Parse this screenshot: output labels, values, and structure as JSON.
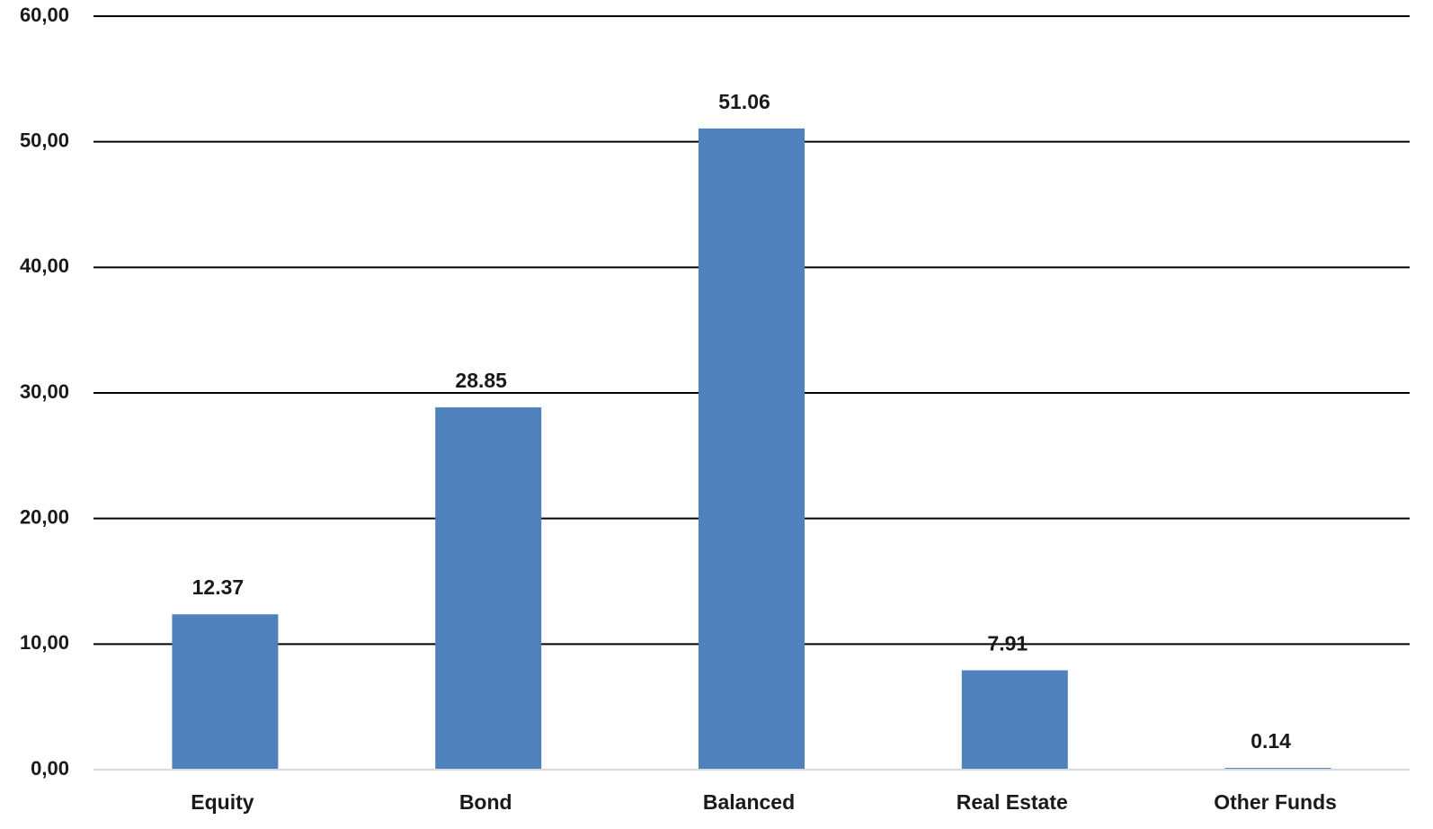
{
  "chart_data": {
    "type": "bar",
    "title": "",
    "xlabel": "",
    "ylabel": "",
    "categories": [
      "Equity",
      "Bond",
      "Balanced",
      "Real Estate",
      "Other Funds"
    ],
    "values": [
      12.37,
      28.85,
      51.06,
      7.91,
      0.14
    ],
    "data_labels": [
      "12.37",
      "28.85",
      "51.06",
      "7.91",
      "0.14"
    ],
    "ylim": [
      0,
      60
    ],
    "yticks": [
      0,
      10,
      20,
      30,
      40,
      50,
      60
    ],
    "ytick_labels": [
      "0,00",
      "10,00",
      "20,00",
      "30,00",
      "40,00",
      "50,00",
      "60,00"
    ],
    "grid": true,
    "legend": "none",
    "colors": {
      "bar": "#4f81bd",
      "gridline": "#000000",
      "baseline": "#d9d9d9",
      "text": "#1a1a1a"
    }
  }
}
